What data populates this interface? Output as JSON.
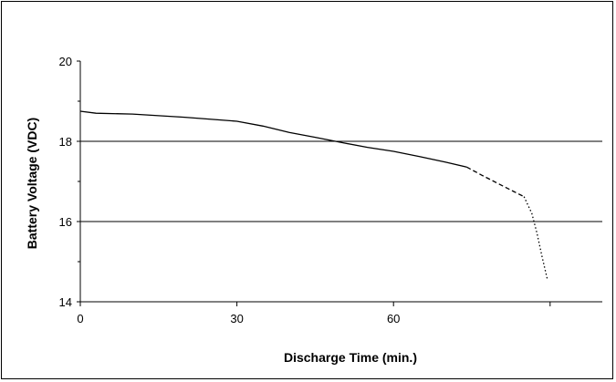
{
  "chart_data": {
    "type": "line",
    "xlabel": "Discharge Time (min.)",
    "ylabel": "Battery Voltage (VDC)",
    "xlim": [
      0,
      100
    ],
    "ylim": [
      14,
      20
    ],
    "x_ticks": [
      0,
      30,
      60
    ],
    "x_tick_labels": [
      "0",
      "30",
      "60"
    ],
    "y_ticks": [
      14,
      16,
      18,
      20
    ],
    "y_tick_labels": [
      "14",
      "16",
      "18",
      "20"
    ],
    "grid": "horizontal lines at 16 and 18",
    "series": [
      {
        "style": "solid",
        "x": [
          0,
          3,
          10,
          20,
          30,
          35,
          40,
          45,
          50,
          55,
          60,
          65,
          70,
          74
        ],
        "y": [
          18.75,
          18.7,
          18.68,
          18.6,
          18.5,
          18.38,
          18.22,
          18.1,
          17.97,
          17.85,
          17.75,
          17.62,
          17.48,
          17.36
        ]
      },
      {
        "style": "dashed",
        "x": [
          74,
          77,
          80,
          83,
          85
        ],
        "y": [
          17.36,
          17.15,
          16.95,
          16.75,
          16.62
        ]
      },
      {
        "style": "dotted",
        "x": [
          85,
          86.5,
          87.5,
          88.5,
          89.5
        ],
        "y": [
          16.62,
          16.2,
          15.7,
          15.1,
          14.55
        ]
      }
    ]
  }
}
